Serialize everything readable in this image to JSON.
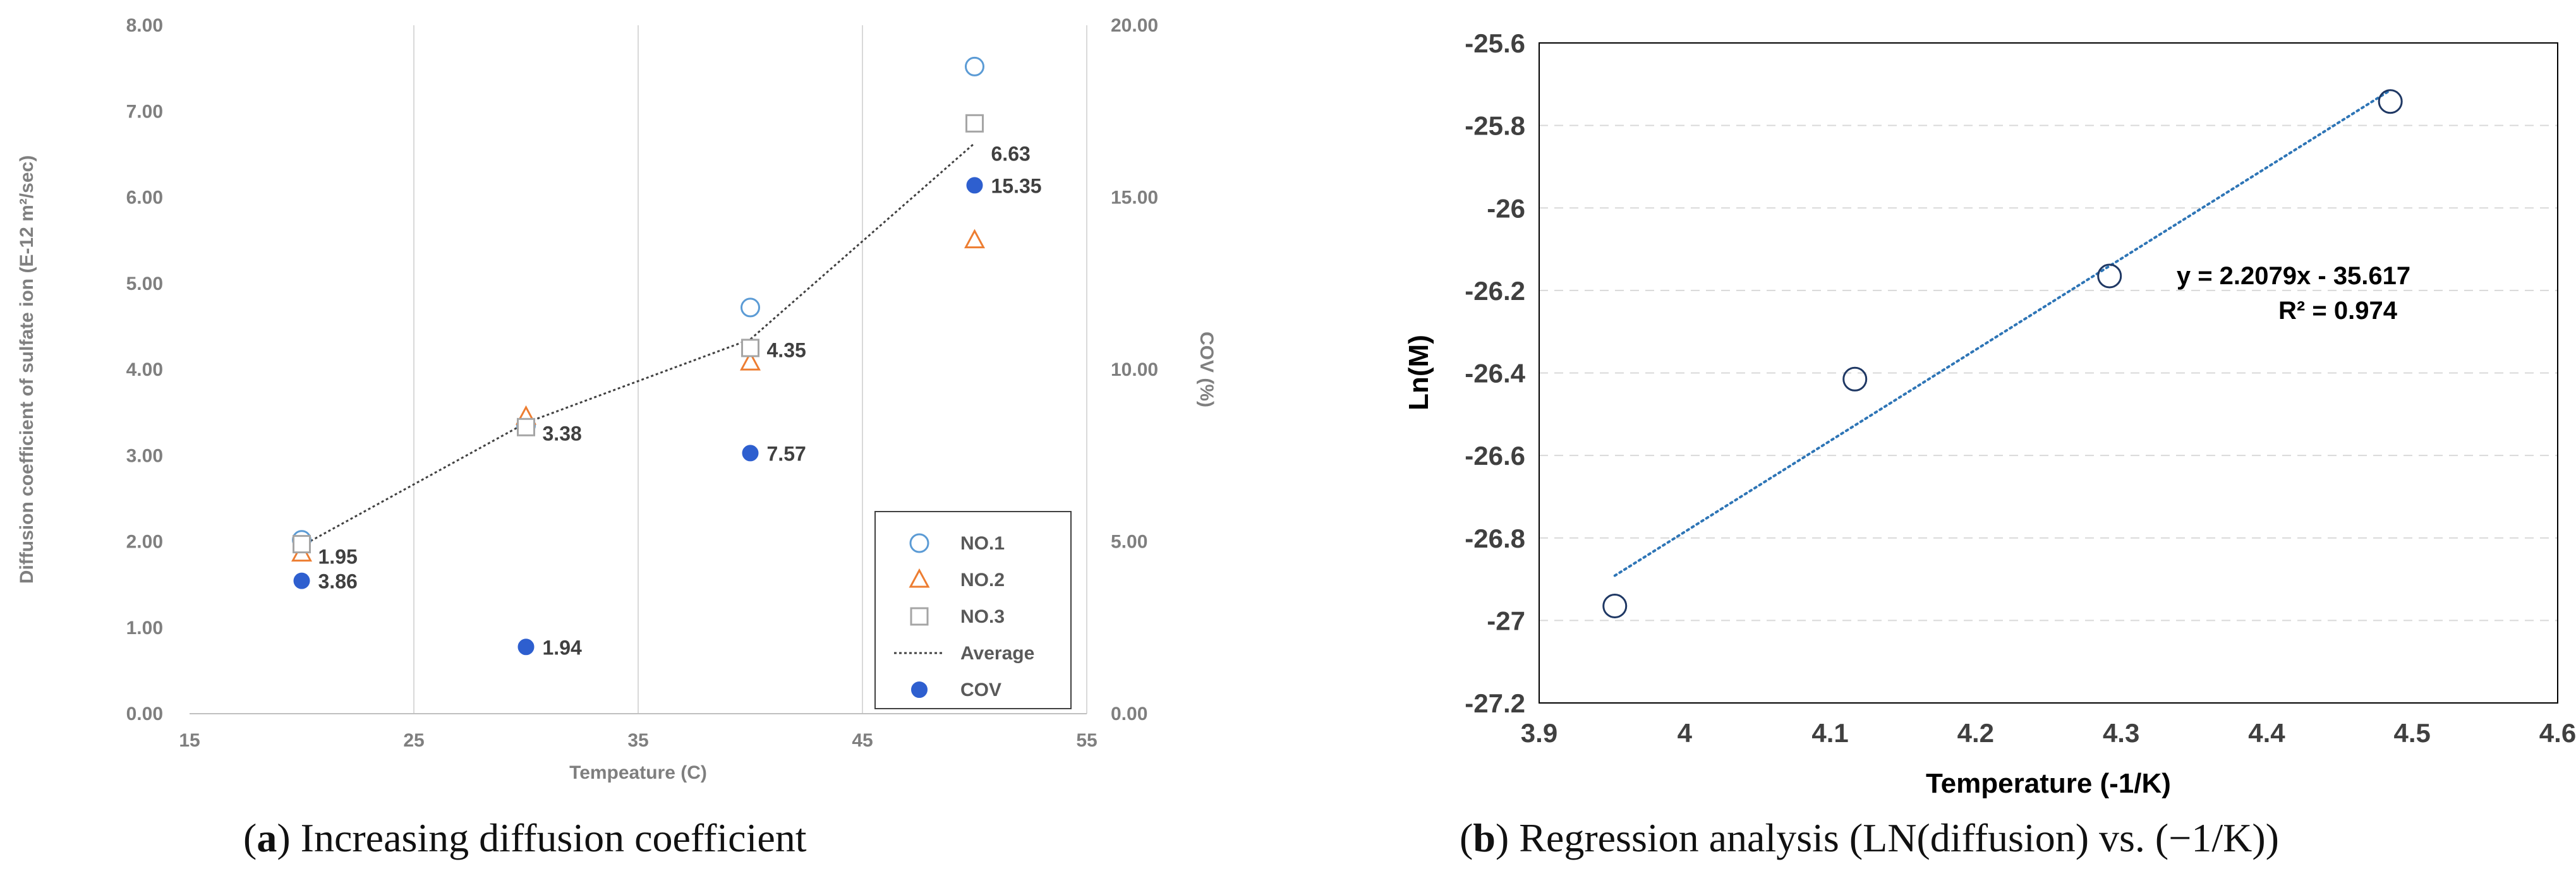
{
  "chart_data": [
    {
      "id": "a",
      "type": "scatter",
      "caption": {
        "letter": "a",
        "text": "Increasing diffusion coefficient"
      },
      "xlabel": "Tempeature (C)",
      "ylabel": "Diffusion coefficient of sulfate ion  (E-12 m²/sec)",
      "y2label": "COV (%)",
      "xlim": [
        15,
        55
      ],
      "xticks": [
        "15",
        "25",
        "35",
        "45",
        "55"
      ],
      "ylim": [
        0,
        8
      ],
      "yticks": [
        "0.00",
        "1.00",
        "2.00",
        "3.00",
        "4.00",
        "5.00",
        "6.00",
        "7.00",
        "8.00"
      ],
      "y2lim": [
        0,
        20
      ],
      "y2ticks": [
        "0.00",
        "5.00",
        "10.00",
        "15.00",
        "20.00"
      ],
      "grid": "vertical",
      "legend_position": "bottom-right",
      "x": [
        20,
        30,
        40,
        50
      ],
      "series": [
        {
          "name": "NO.1",
          "marker": "open-circle",
          "color": "#5b9bd5",
          "axis": "left",
          "values": [
            2.02,
            3.35,
            4.72,
            7.52
          ]
        },
        {
          "name": "NO.2",
          "marker": "open-triangle",
          "color": "#ed7d31",
          "axis": "left",
          "values": [
            1.86,
            3.45,
            4.08,
            5.5
          ]
        },
        {
          "name": "NO.3",
          "marker": "open-square",
          "color": "#a5a5a5",
          "axis": "left",
          "values": [
            1.97,
            3.33,
            4.25,
            6.86
          ]
        },
        {
          "name": "Average",
          "marker": "dotted-line",
          "color": "#404040",
          "axis": "left",
          "values": [
            1.95,
            3.38,
            4.35,
            6.63
          ],
          "labels": [
            "1.95",
            "3.38",
            "4.35",
            "6.63"
          ]
        },
        {
          "name": "COV",
          "marker": "filled-circle",
          "color": "#2e5fcf",
          "axis": "right",
          "values": [
            3.86,
            1.94,
            7.57,
            15.35
          ],
          "labels": [
            "3.86",
            "1.94",
            "7.57",
            "15.35"
          ]
        }
      ]
    },
    {
      "id": "b",
      "type": "scatter",
      "caption": {
        "letter": "b",
        "text": "Regression analysis (LN(diffusion) vs. (−1/K))"
      },
      "xlabel": "Temperature (-1/K)",
      "ylabel": "Ln(M)",
      "xlim": [
        3.9,
        4.6
      ],
      "xticks": [
        "3.9",
        "4",
        "4.1",
        "4.2",
        "4.3",
        "4.4",
        "4.5",
        "4.6"
      ],
      "ylim": [
        -27.2,
        -25.6
      ],
      "yticks": [
        "-27.2",
        "-27",
        "-26.8",
        "-26.6",
        "-26.4",
        "-26.2",
        "-26",
        "-25.8",
        "-25.6"
      ],
      "grid": "horizontal-dashed",
      "series": [
        {
          "name": "Ln(M)",
          "marker": "open-circle",
          "color": "#1f3864",
          "x": [
            3.952,
            4.117,
            4.292,
            4.485
          ],
          "y": [
            -26.965,
            -26.415,
            -26.165,
            -25.742
          ]
        }
      ],
      "trendline": {
        "type": "linear",
        "slope": 2.2079,
        "intercept": -35.617,
        "x_range": [
          3.952,
          4.485
        ],
        "color": "#2e75b6",
        "equation": "y = 2.2079x - 35.617",
        "r2_label": "R² = 0.974"
      }
    }
  ]
}
